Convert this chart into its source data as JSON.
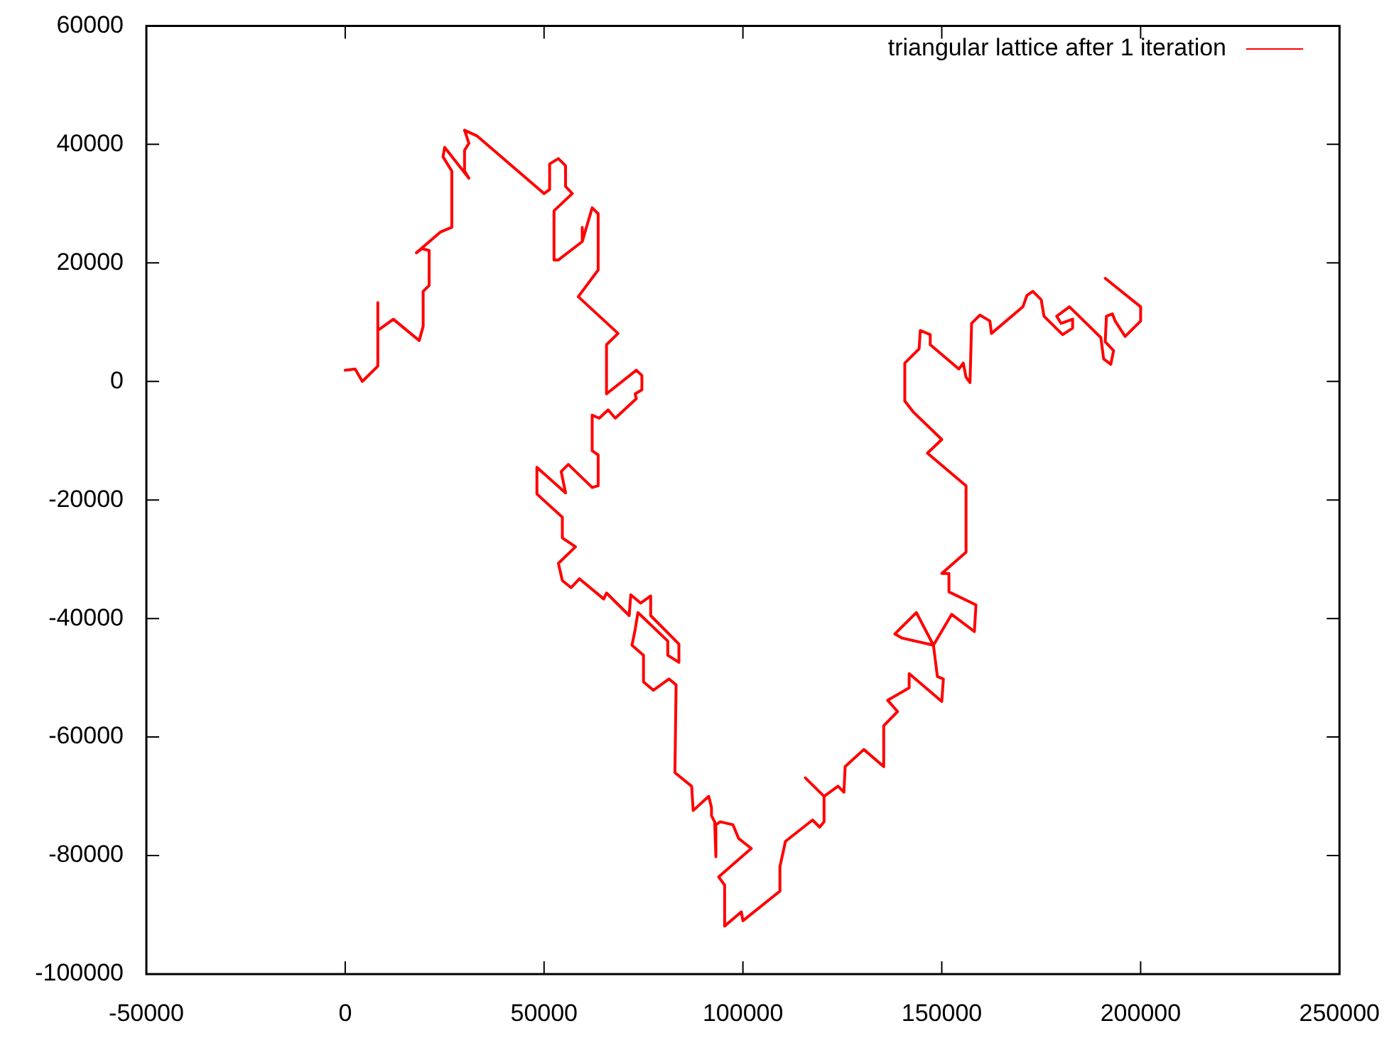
{
  "chart_data": {
    "type": "line",
    "xlim": [
      -50000,
      250000
    ],
    "xticks": [
      -50000,
      0,
      50000,
      100000,
      150000,
      200000,
      250000
    ],
    "ylim": [
      -100000,
      60000
    ],
    "yticks": [
      -100000,
      -80000,
      -60000,
      -40000,
      -20000,
      0,
      20000,
      40000,
      60000
    ],
    "legend": "top right",
    "marker": "none",
    "line_style": "solid",
    "series": [
      {
        "name": "triangular lattice after 1 iteration",
        "color": "#ff0000",
        "x": [
          0,
          2500,
          4300,
          8200,
          8200,
          8200,
          12100,
          18600,
          19600,
          19600,
          21100,
          21100,
          19300,
          17900,
          23900,
          26800,
          26800,
          24600,
          25000,
          31100,
          30000,
          30000,
          31100,
          30000,
          33200,
          50000,
          51400,
          51400,
          53600,
          55400,
          55400,
          57100,
          52500,
          52500,
          53600,
          59600,
          59600,
          59600,
          62100,
          63600,
          63600,
          58600,
          68600,
          65700,
          65700,
          73200,
          74600,
          74600,
          72900,
          73200,
          67900,
          66100,
          63900,
          62100,
          62100,
          63600,
          63600,
          62100,
          56100,
          54300,
          55400,
          48200,
          48200,
          54600,
          54600,
          57900,
          53600,
          54600,
          56800,
          58900,
          65000,
          65700,
          71400,
          71800,
          74300,
          76800,
          76800,
          83900,
          83900,
          81100,
          81100,
          73600,
          72900,
          72100,
          75000,
          75000,
          77500,
          81400,
          83200,
          82900,
          87100,
          87500,
          91400,
          92100,
          92100,
          92900,
          93200,
          93200,
          94300,
          97500,
          98900,
          102100,
          93900,
          95400,
          95400,
          99600,
          100000,
          109300,
          109300,
          110700,
          117500,
          119300,
          120400,
          120400,
          115700,
          120400,
          123900,
          125400,
          125700,
          130400,
          135400,
          135400,
          138900,
          136400,
          141800,
          141800,
          150000,
          150400,
          148900,
          147900,
          143600,
          138200,
          140000,
          147900,
          152500,
          158200,
          158600,
          151800,
          151800,
          150000,
          156100,
          156100,
          146400,
          150000,
          142900,
          140700,
          140700,
          144300,
          144600,
          147100,
          147100,
          154300,
          155400,
          156100,
          157100,
          157500,
          159600,
          162100,
          162500,
          170400,
          171400,
          172900,
          175000,
          175700,
          180400,
          182900,
          182900,
          180000,
          178900,
          182100,
          190000,
          190700,
          192500,
          193200,
          191100,
          191400,
          192900,
          193600,
          196100,
          200000,
          200000,
          191100
        ],
        "values": [
          1900,
          2100,
          0,
          2600,
          13300,
          8600,
          10500,
          6900,
          9300,
          15200,
          16200,
          22100,
          22400,
          21700,
          25200,
          26000,
          35500,
          37900,
          39500,
          34300,
          35500,
          39000,
          40200,
          42400,
          41400,
          31700,
          32400,
          36700,
          37600,
          36400,
          32900,
          31700,
          28800,
          20500,
          20500,
          23600,
          26000,
          23600,
          29300,
          28300,
          18800,
          14300,
          8100,
          6200,
          -2100,
          1900,
          1000,
          -1400,
          -2100,
          -2900,
          -6200,
          -4800,
          -6200,
          -5700,
          -11700,
          -12400,
          -17600,
          -17900,
          -14000,
          -15200,
          -18800,
          -14500,
          -19000,
          -22900,
          -26400,
          -27900,
          -30700,
          -33600,
          -34800,
          -33300,
          -36700,
          -35700,
          -39500,
          -36000,
          -37400,
          -36200,
          -39500,
          -44300,
          -47400,
          -46200,
          -43800,
          -39000,
          -41900,
          -44500,
          -46200,
          -50700,
          -52100,
          -50200,
          -51200,
          -66000,
          -68300,
          -72400,
          -70000,
          -71900,
          -73300,
          -74300,
          -80200,
          -74800,
          -74300,
          -74800,
          -77100,
          -78800,
          -83600,
          -85000,
          -91900,
          -89500,
          -91000,
          -86000,
          -81900,
          -77600,
          -74000,
          -75200,
          -74300,
          -70000,
          -66900,
          -70000,
          -68300,
          -69300,
          -65000,
          -62100,
          -65000,
          -58100,
          -55700,
          -53800,
          -51700,
          -49300,
          -54000,
          -50200,
          -49800,
          -44500,
          -39000,
          -42600,
          -43300,
          -44500,
          -39300,
          -42200,
          -37700,
          -35500,
          -32400,
          -32400,
          -28800,
          -17600,
          -12100,
          -9800,
          -5200,
          -3300,
          3100,
          5500,
          8600,
          7900,
          6200,
          2100,
          3100,
          700,
          -200,
          9800,
          11200,
          10200,
          8100,
          12600,
          14500,
          15200,
          13800,
          11000,
          7900,
          9000,
          10500,
          9800,
          11000,
          12600,
          7400,
          3800,
          2900,
          5200,
          6700,
          11000,
          11400,
          10200,
          7600,
          10200,
          12600,
          17400
        ]
      }
    ]
  }
}
